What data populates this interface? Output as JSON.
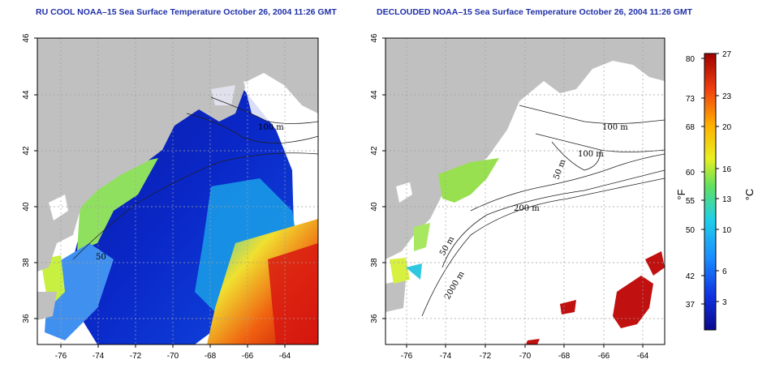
{
  "left_panel": {
    "title": "RU COOL NOAA–15 Sea Surface Temperature October 26, 2004 11:26 GMT",
    "lon_ticks": [
      "-76",
      "-74",
      "-72",
      "-70",
      "-68",
      "-66",
      "-64"
    ],
    "lat_ticks": [
      "46",
      "44",
      "42",
      "40",
      "38",
      "36"
    ],
    "contour_labels": [
      "100 m",
      "50"
    ]
  },
  "right_panel": {
    "title": "DECLOUDED NOAA–15 Sea Surface Temperature October 26, 2004 11:26 GMT",
    "lon_ticks": [
      "-76",
      "-74",
      "-72",
      "-70",
      "-68",
      "-66",
      "-64"
    ],
    "lat_ticks": [
      "46",
      "44",
      "42",
      "40",
      "38",
      "36"
    ],
    "contour_labels": [
      "100 m",
      "100 m",
      "50 m",
      "200 m",
      "50 m",
      "2000 m"
    ]
  },
  "colorbar": {
    "fahrenheit_label": "°F",
    "celsius_label": "°C",
    "fahrenheit_ticks": [
      "80",
      "73",
      "68",
      "60",
      "55",
      "50",
      "42",
      "37"
    ],
    "celsius_ticks": [
      "27",
      "23",
      "20",
      "16",
      "13",
      "10",
      "6",
      "3"
    ],
    "colors": [
      "#0a0a8c",
      "#1030e0",
      "#1a8cff",
      "#20d0e8",
      "#60e060",
      "#e8f020",
      "#ffb000",
      "#f04010",
      "#a00000"
    ]
  },
  "colors": {
    "land": "#c0c0c0",
    "cold": "#0a1aa8",
    "warm": "#d02010",
    "title": "#1f2fa8"
  }
}
